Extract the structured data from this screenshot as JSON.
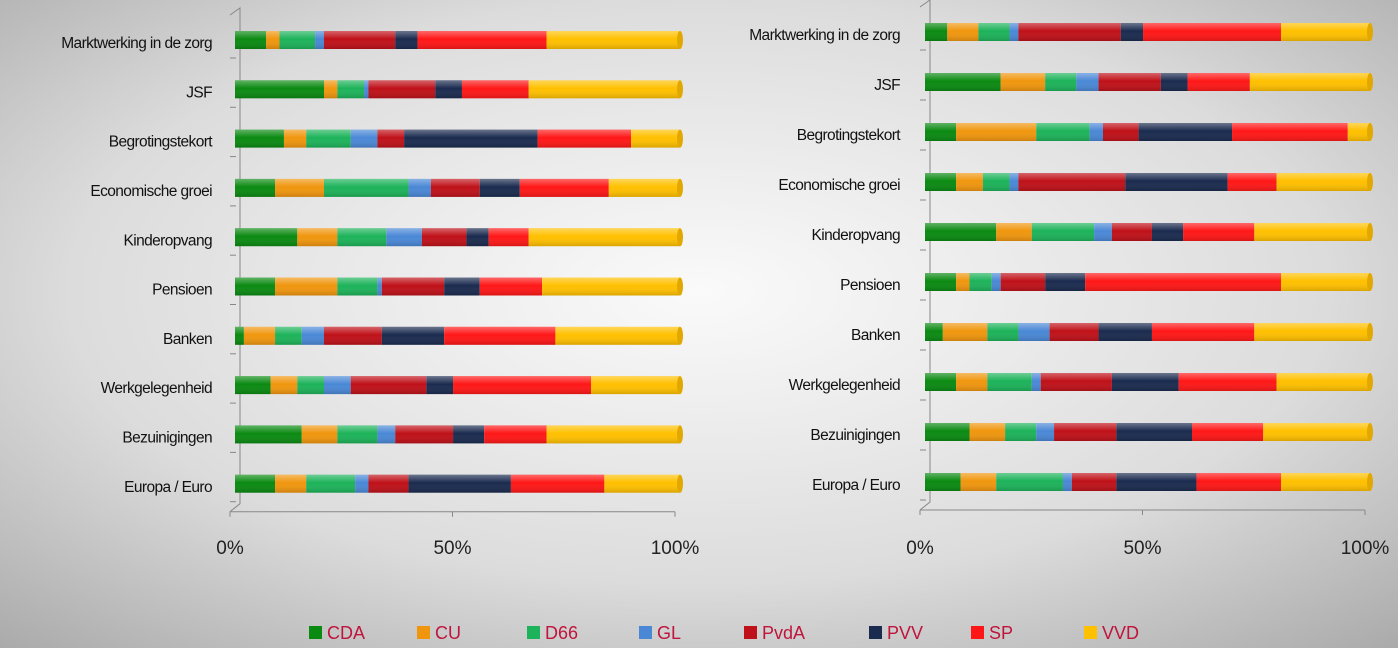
{
  "chart_data": [
    {
      "type": "bar",
      "orientation": "horizontal",
      "stacked": true,
      "categories": [
        "Marktwerking in de zorg",
        "JSF",
        "Begrotingstekort",
        "Economische groei",
        "Kinderopvang",
        "Pensioen",
        "Banken",
        "Werkgelegenheid",
        "Bezuinigingen",
        "Europa / Euro"
      ],
      "series": [
        {
          "name": "CDA",
          "color": "#0b8a12",
          "values": [
            7,
            20,
            11,
            9,
            14,
            9,
            2,
            8,
            15,
            9
          ]
        },
        {
          "name": "CU",
          "color": "#f0960e",
          "values": [
            3,
            3,
            5,
            11,
            9,
            14,
            7,
            6,
            8,
            7
          ]
        },
        {
          "name": "D66",
          "color": "#1db35a",
          "values": [
            8,
            6,
            10,
            19,
            11,
            9,
            6,
            6,
            9,
            11
          ]
        },
        {
          "name": "GL",
          "color": "#4a88d6",
          "values": [
            2,
            1,
            6,
            5,
            8,
            1,
            5,
            6,
            4,
            3
          ]
        },
        {
          "name": "PvdA",
          "color": "#bf1119",
          "values": [
            16,
            15,
            6,
            11,
            10,
            14,
            13,
            17,
            13,
            9
          ]
        },
        {
          "name": "PVV",
          "color": "#1b2b4f",
          "values": [
            5,
            6,
            30,
            9,
            5,
            8,
            14,
            6,
            7,
            23
          ]
        },
        {
          "name": "SP",
          "color": "#ff1717",
          "values": [
            29,
            15,
            21,
            20,
            9,
            14,
            25,
            31,
            14,
            21
          ]
        },
        {
          "name": "VVD",
          "color": "#ffc000",
          "values": [
            30,
            34,
            11,
            16,
            34,
            31,
            28,
            20,
            30,
            17
          ]
        }
      ],
      "xlim": [
        0,
        100
      ],
      "xticks": [
        {
          "value": 0,
          "label": "0%"
        },
        {
          "value": 50,
          "label": "50%"
        },
        {
          "value": 100,
          "label": "100%"
        }
      ]
    },
    {
      "type": "bar",
      "orientation": "horizontal",
      "stacked": true,
      "categories": [
        "Marktwerking in de zorg",
        "JSF",
        "Begrotingstekort",
        "Economische groei",
        "Kinderopvang",
        "Pensioen",
        "Banken",
        "Werkgelegenheid",
        "Bezuinigingen",
        "Europa / Euro"
      ],
      "series": [
        {
          "values": [
            5,
            17,
            7,
            7,
            16,
            7,
            4,
            7,
            10,
            8
          ]
        },
        {
          "values": [
            7,
            10,
            18,
            6,
            8,
            3,
            10,
            7,
            8,
            8
          ]
        },
        {
          "values": [
            7,
            7,
            12,
            6,
            14,
            5,
            7,
            10,
            7,
            15
          ]
        },
        {
          "values": [
            2,
            5,
            3,
            2,
            4,
            2,
            7,
            2,
            4,
            2
          ]
        },
        {
          "values": [
            23,
            14,
            8,
            24,
            9,
            10,
            11,
            16,
            14,
            10
          ]
        },
        {
          "values": [
            5,
            6,
            21,
            23,
            7,
            9,
            12,
            15,
            17,
            18
          ]
        },
        {
          "values": [
            31,
            14,
            26,
            11,
            16,
            44,
            23,
            22,
            16,
            19
          ]
        },
        {
          "values": [
            20,
            27,
            5,
            21,
            26,
            20,
            26,
            21,
            24,
            20
          ]
        }
      ],
      "xlim": [
        0,
        100
      ],
      "xticks": [
        {
          "value": 0,
          "label": "0%"
        },
        {
          "value": 50,
          "label": "50%"
        },
        {
          "value": 100,
          "label": "100%"
        }
      ]
    }
  ]
}
